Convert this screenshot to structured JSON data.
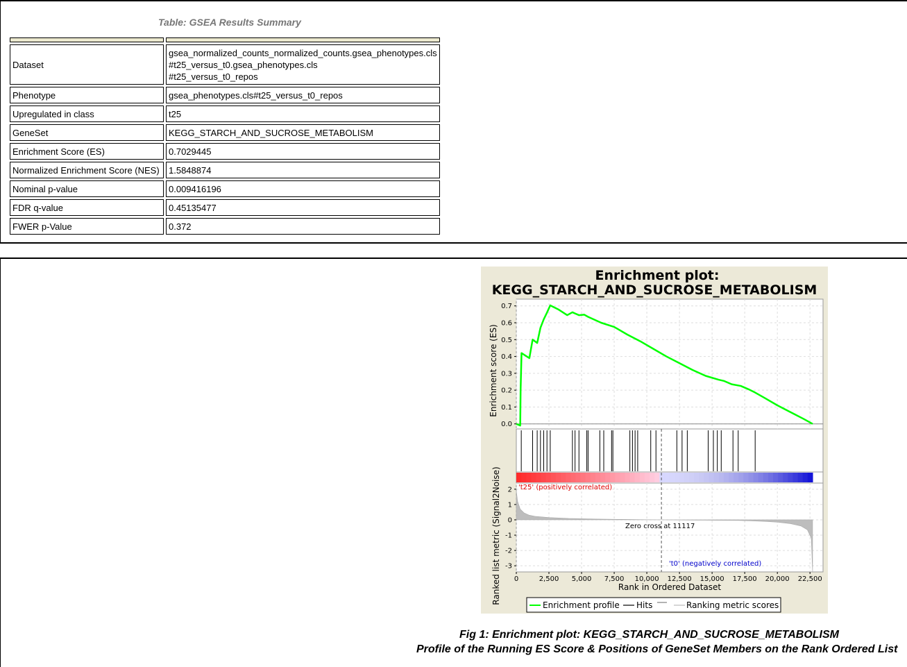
{
  "table": {
    "caption": "Table: GSEA Results Summary",
    "rows": [
      {
        "key": "Dataset",
        "value_lines": [
          "gsea_normalized_counts_normalized_counts.gsea_phenotypes.cls",
          "#t25_versus_t0.gsea_phenotypes.cls",
          "#t25_versus_t0_repos"
        ]
      },
      {
        "key": "Phenotype",
        "value": "gsea_phenotypes.cls#t25_versus_t0_repos"
      },
      {
        "key": "Upregulated in class",
        "value": "t25"
      },
      {
        "key": "GeneSet",
        "value": "KEGG_STARCH_AND_SUCROSE_METABOLISM"
      },
      {
        "key": "Enrichment Score (ES)",
        "value": "0.7029445"
      },
      {
        "key": "Normalized Enrichment Score (NES)",
        "value": "1.5848874"
      },
      {
        "key": "Nominal p-value",
        "value": "0.009416196"
      },
      {
        "key": "FDR q-value",
        "value": "0.45135477"
      },
      {
        "key": "FWER p-Value",
        "value": "0.372"
      }
    ]
  },
  "chart_data": {
    "type": "line",
    "title_line1": "Enrichment plot:",
    "title_line2": "KEGG_STARCH_AND_SUCROSE_METABOLISM",
    "top_ylabel": "Enrichment score (ES)",
    "bottom_ylabel": "Ranked list metric (Signal2Noise)",
    "xlabel": "Rank in Ordered Dataset",
    "x_ticks": [
      "0",
      "2,500",
      "5,000",
      "7,500",
      "10,000",
      "12,500",
      "15,000",
      "17,500",
      "20,000",
      "22,500"
    ],
    "x_tick_values": [
      0,
      2500,
      5000,
      7500,
      10000,
      12500,
      15000,
      17500,
      20000,
      22500
    ],
    "xlim": [
      0,
      23500
    ],
    "es_yticks": [
      "0.0",
      "0.1",
      "0.2",
      "0.3",
      "0.4",
      "0.5",
      "0.6",
      "0.7"
    ],
    "es_ylim": [
      -0.03,
      0.74
    ],
    "metric_yticks": [
      "2",
      "1",
      "0",
      "-1",
      "-2",
      "-3"
    ],
    "metric_ylim": [
      -3.4,
      2.4
    ],
    "grid": true,
    "es_series": {
      "name": "Enrichment profile",
      "color": "#00ff00",
      "x": [
        0,
        300,
        330,
        330,
        400,
        400,
        1000,
        1250,
        1600,
        1850,
        2100,
        2350,
        2600,
        3200,
        3900,
        4300,
        4500,
        4800,
        5200,
        5500,
        6500,
        7500,
        8500,
        9500,
        10500,
        11500,
        12500,
        13500,
        14500,
        15500,
        15900,
        16500,
        17200,
        17800,
        18200,
        19000,
        20000,
        21000,
        22000,
        22700
      ],
      "y": [
        0.0,
        -0.01,
        0.2,
        0.2,
        0.42,
        0.42,
        0.39,
        0.5,
        0.48,
        0.57,
        0.62,
        0.66,
        0.703,
        0.68,
        0.645,
        0.662,
        0.655,
        0.645,
        0.648,
        0.635,
        0.6,
        0.575,
        0.53,
        0.49,
        0.445,
        0.4,
        0.36,
        0.32,
        0.285,
        0.262,
        0.255,
        0.235,
        0.225,
        0.205,
        0.19,
        0.155,
        0.11,
        0.07,
        0.03,
        0.0
      ]
    },
    "hits": [
      380,
      1250,
      1600,
      1850,
      2100,
      2350,
      2600,
      4300,
      4500,
      4800,
      5400,
      5500,
      6400,
      6700,
      7300,
      7400,
      8700,
      8900,
      9100,
      9300,
      10300,
      10700,
      12300,
      12700,
      13100,
      14700,
      15100,
      15400,
      15700,
      16600,
      17000,
      18300
    ],
    "hits_label": "Hits",
    "metric_label": "Ranking metric scores",
    "pos_label": "'t25' (positively correlated)",
    "neg_label": "'t0' (negatively correlated)",
    "zero_cross_label": "Zero cross at 11117",
    "zero_cross_x": 11117,
    "metric_curve": {
      "x": [
        0,
        100,
        300,
        600,
        1000,
        1500,
        2500,
        4000,
        6000,
        8000,
        10000,
        11117,
        14000,
        17000,
        18000,
        19000,
        20000,
        21000,
        21800,
        22300,
        22600,
        22700
      ],
      "y": [
        1.9,
        1.2,
        0.7,
        0.45,
        0.3,
        0.22,
        0.15,
        0.09,
        0.05,
        0.03,
        0.01,
        0.0,
        -0.02,
        -0.04,
        -0.07,
        -0.1,
        -0.15,
        -0.25,
        -0.4,
        -0.65,
        -1.2,
        -3.4
      ]
    },
    "legend": [
      "Enrichment profile",
      "Hits",
      "Ranking metric scores"
    ],
    "colors": {
      "background": "#ece9d8",
      "es_line": "#00ff00",
      "pos": "#ff0000",
      "neg": "#0000ff"
    }
  },
  "figure_caption": {
    "line1": "Fig 1: Enrichment plot: KEGG_STARCH_AND_SUCROSE_METABOLISM",
    "line2": "Profile of the Running ES Score & Positions of GeneSet Members on the Rank Ordered List"
  }
}
